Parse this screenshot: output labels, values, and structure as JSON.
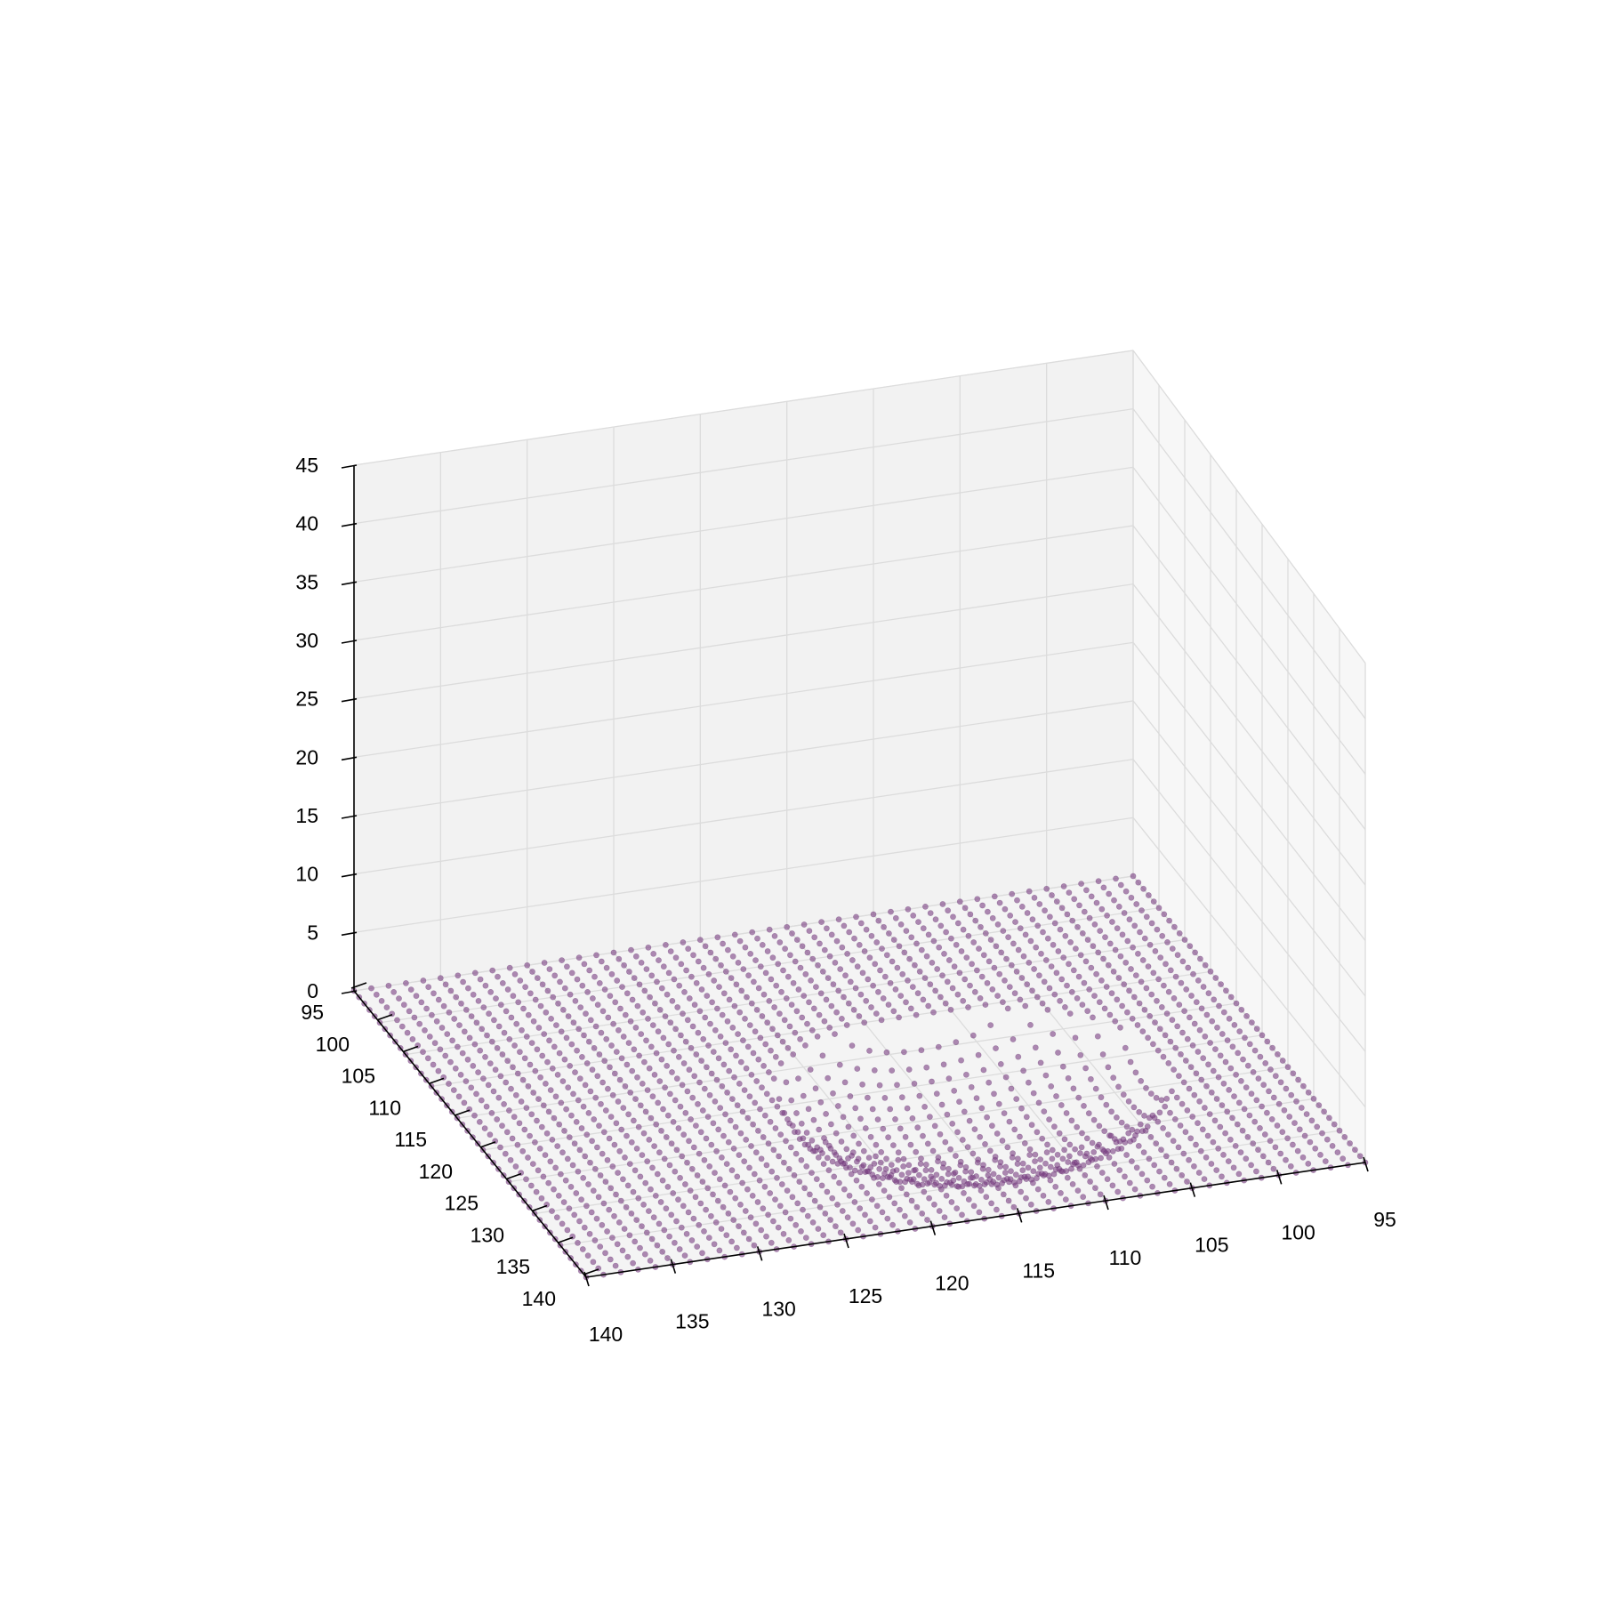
{
  "chart_data": {
    "type": "scatter",
    "projection": "3d",
    "title": "",
    "xlabel": "",
    "ylabel": "",
    "zlabel": "",
    "x_ticks": [
      "95",
      "100",
      "105",
      "110",
      "115",
      "120",
      "125",
      "130",
      "135",
      "140"
    ],
    "y_ticks": [
      "95",
      "100",
      "105",
      "110",
      "115",
      "120",
      "125",
      "130",
      "135",
      "140"
    ],
    "z_ticks": [
      "0",
      "5",
      "10",
      "15",
      "20",
      "25",
      "30",
      "35",
      "40",
      "45"
    ],
    "xlim": [
      95,
      140
    ],
    "ylim": [
      95,
      140
    ],
    "zlim": [
      0,
      45
    ],
    "grid": true,
    "series": [
      {
        "marker": "circle",
        "color": "#7a3e82",
        "alpha": 0.6,
        "grid_x_range": [
          95,
          140
        ],
        "grid_y_range": [
          95,
          140
        ],
        "grid_step": 1,
        "surface": "flat plane at z=0 with a spherical-cap depression near the center",
        "depression_center": [
          112,
          121
        ],
        "depression_radius": 11
      }
    ]
  },
  "colors": {
    "marker": "#7a3e82",
    "marker_edge": "#5a2463",
    "pane_back": "#f2f2f2",
    "pane_side": "#f7f7f7",
    "pane_floor": "#f4f4f4",
    "grid": "#dcdcdc",
    "axis": "#000000"
  }
}
